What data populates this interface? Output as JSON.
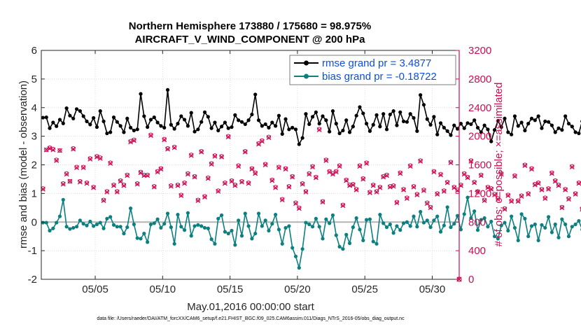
{
  "colors": {
    "rmse": "#000000",
    "bias": "#0c8080",
    "obs": "#cc0d53",
    "zero_line": "#b4b4b4",
    "legend_text": "#0d4fdb"
  },
  "chart_data": {
    "type": "line",
    "title_line1": "Northern Hemisphere 173880 / 175680 = 98.975%",
    "title_line2": "AIRCRAFT_V_WIND_COMPONENT @ 200 hPa",
    "xlabel": "May.01,2016 00:00:00 start",
    "ylabel": "rmse and bias (model - observation)",
    "ylabel_right": "# of obs: o=possible; ×=assimilated",
    "footnote": "data file: /Users/raeder/DAI/ATM_forcXX/CAM6_setup/f.e21.FHIST_BGC.f09_025.CAM6assim.011/Diags_NTrS_2016-05/obs_diag_output.nc",
    "x_unit": "day of May 2016",
    "xlim": [
      1,
      32
    ],
    "ylim": [
      -2,
      6
    ],
    "ylim_right": [
      0,
      3200
    ],
    "x_ticks": [
      {
        "day": 5,
        "label": "05/05"
      },
      {
        "day": 10,
        "label": "05/10"
      },
      {
        "day": 15,
        "label": "05/15"
      },
      {
        "day": 20,
        "label": "05/20"
      },
      {
        "day": 25,
        "label": "05/25"
      },
      {
        "day": 30,
        "label": "05/30"
      }
    ],
    "y_ticks": [
      "-2",
      "-1",
      "0",
      "1",
      "2",
      "3",
      "4",
      "5",
      "6"
    ],
    "y_ticks_right": [
      "0",
      "400",
      "800",
      "1200",
      "1600",
      "2000",
      "2400",
      "2800",
      "3200"
    ],
    "legend": [
      {
        "name": "rmse",
        "label": "rmse grand pr = 3.4877"
      },
      {
        "name": "bias",
        "label": "bias grand pr = -0.18722"
      }
    ],
    "samples_per_day": 4,
    "series": [
      {
        "name": "rmse",
        "values": [
          3.65,
          3.66,
          3.28,
          3.48,
          3.35,
          3.58,
          3.45,
          3.98,
          3.72,
          3.62,
          3.95,
          3.88,
          3.7,
          3.52,
          3.41,
          3.64,
          3.32,
          3.88,
          3.52,
          3.1,
          3.14,
          3.66,
          3.5,
          3.36,
          3.14,
          3.62,
          3.3,
          3.2,
          3.24,
          4.48,
          3.7,
          3.32,
          3.58,
          3.66,
          3.48,
          3.36,
          3.3,
          4.62,
          3.4,
          3.26,
          3.44,
          3.7,
          3.58,
          3.36,
          3.82,
          3.16,
          3.24,
          3.5,
          3.84,
          3.68,
          3.28,
          3.48,
          3.2,
          3.34,
          3.48,
          3.28,
          3.32,
          3.74,
          3.56,
          3.5,
          3.42,
          3.56,
          3.76,
          4.46,
          3.56,
          3.36,
          3.42,
          3.3,
          3.48,
          3.36,
          3.72,
          3.08,
          3.6,
          3.24,
          3.3,
          3.24,
          2.72,
          2.94,
          3.78,
          3.42,
          3.68,
          3.84,
          3.44,
          3.7,
          3.56,
          3.16,
          3.88,
          3.44,
          3.1,
          3.2,
          3.56,
          3.14,
          3.34,
          3.72,
          4.02,
          3.8,
          3.44,
          3.18,
          3.4,
          3.74,
          3.34,
          3.78,
          3.24,
          3.76,
          3.88,
          3.38,
          3.84,
          3.52,
          3.5,
          3.78,
          3.64,
          3.18,
          4.44,
          4.1,
          3.6,
          3.4,
          3.68,
          3.06,
          3.46,
          3.3,
          3.18,
          3.04,
          3.38,
          3.26,
          3.44,
          3.28,
          3.46,
          3.42,
          3.56,
          3.3,
          3.14,
          3.38,
          3.24,
          2.82,
          3.22,
          3.54,
          3.32,
          3.62,
          3.14,
          3.06,
          3.7,
          3.36,
          3.48,
          3.2,
          3.44,
          3.62,
          3.56,
          3.7,
          3.28,
          3.52,
          3.5,
          3.38,
          3.14,
          3.28,
          3.22,
          3.7,
          3.44,
          3.34,
          3.14,
          3.1,
          3.52,
          4.02,
          3.82,
          3.12,
          3.42,
          3.44
        ]
      },
      {
        "name": "bias",
        "values": [
          -0.02,
          -0.02,
          -0.3,
          -0.22,
          -0.02,
          0.2,
          0.78,
          -0.16,
          -0.24,
          -0.2,
          -0.16,
          0.06,
          -0.06,
          -0.12,
          0.02,
          -0.14,
          -0.08,
          -0.02,
          -0.22,
          0.12,
          0.18,
          -0.1,
          -0.16,
          -0.16,
          -0.4,
          -0.18,
          0.48,
          -0.08,
          -0.56,
          -0.58,
          -0.4,
          -0.7,
          -0.08,
          -0.04,
          0.1,
          -0.2,
          -0.06,
          0.3,
          -0.18,
          -0.76,
          0.26,
          -0.16,
          -0.28,
          0.32,
          -0.48,
          -0.14,
          -0.1,
          -0.14,
          -0.2,
          -0.22,
          -0.6,
          -0.76,
          0.12,
          0.24,
          -0.34,
          -0.4,
          -0.3,
          -0.8,
          0.06,
          -0.48,
          0.3,
          -0.14,
          -0.58,
          -0.4,
          0.3,
          -0.14,
          0.06,
          -0.3,
          -0.06,
          0.26,
          -0.26,
          -0.76,
          -0.2,
          -0.14,
          -0.9,
          -1.2,
          -1.6,
          -0.94,
          -0.02,
          -0.08,
          -0.16,
          0.12,
          -0.16,
          -0.58,
          0.1,
          -0.04,
          0.24,
          -0.46,
          -0.86,
          -0.94,
          -0.44,
          -0.74,
          -0.18,
          0.14,
          -0.26,
          -0.64,
          0.08,
          0.1,
          -0.68,
          -0.76,
          0.26,
          -0.04,
          -0.18,
          -0.08,
          -0.38,
          -0.14,
          -0.28,
          -0.04,
          0.0,
          -0.14,
          0.2,
          -0.16,
          0.36,
          -0.02,
          0.06,
          -0.18,
          0.06,
          0.2,
          -0.34,
          -0.12,
          0.52,
          -0.18,
          -0.06,
          0.22,
          -0.26,
          0.28,
          0.86,
          0.14,
          0.38,
          -0.28,
          0.08,
          0.14,
          -0.16,
          0.02,
          -0.5,
          -0.58,
          -0.12,
          -0.02,
          -0.3,
          0.2,
          -0.2,
          -0.64,
          0.28,
          0.12,
          -0.5,
          -0.14,
          -0.08,
          -0.64,
          -0.1,
          -0.2,
          0.18,
          -0.36,
          -0.08,
          -0.54,
          0.1,
          -0.08,
          -0.5,
          -0.16,
          -0.08,
          0.04,
          -0.26,
          0.36,
          0.12,
          -0.08,
          0.32,
          -0.1
        ]
      },
      {
        "name": "obs_possible",
        "axis": "right",
        "values": [
          1270,
          1810,
          1840,
          1820,
          1670,
          1800,
          1340,
          1480,
          1370,
          1830,
          1570,
          1370,
          1570,
          1350,
          1690,
          1290,
          1720,
          1700,
          1110,
          1230,
          1630,
          1320,
          1230,
          1380,
          1320,
          1460,
          1930,
          1950,
          1340,
          1500,
          1460,
          1460,
          2020,
          1300,
          1510,
          1550,
          1960,
          1830,
          1310,
          1850,
          1320,
          1180,
          1350,
          1480,
          1740,
          1440,
          1110,
          1790,
          1160,
          1420,
          1620,
          1730,
          1240,
          1720,
          1350,
          2000,
          1380,
          1320,
          1590,
          1370,
          1790,
          1350,
          1550,
          1490,
          1900,
          1940,
          1610,
          1990,
          1390,
          1290,
          1570,
          1120,
          1550,
          1300,
          1440,
          1070,
          1000,
          1340,
          1230,
          1480,
          1580,
          1430,
          2100,
          1090,
          1670,
          1510,
          1480,
          1510,
          1590,
          1040,
          1390,
          1320,
          1330,
          1260,
          1590,
          1410,
          1630,
          1220,
          1320,
          1230,
          1290,
          1440,
          1460,
          1300,
          1310,
          1080,
          1490,
          1260,
          1140,
          1590,
          1300,
          1190,
          1660,
          1250,
          1070,
          1010,
          1510,
          1200,
          1470,
          1240,
          1360,
          1640,
          1290,
          1250,
          1320,
          1480,
          1430,
          1660,
          1360,
          1230,
          1460,
          1110,
          1290,
          1270,
          1190,
          1130,
          1480,
          990,
          1180,
          1100,
          1450,
          1100,
          1170,
          1600,
          1200,
          1550,
          1330,
          1350,
          1260,
          1140,
          1270,
          1490,
          1380,
          1320,
          1010,
          1260,
          1130,
          1580,
          1200,
          1350,
          990,
          1400,
          1430,
          1320,
          1010,
          1370
        ]
      },
      {
        "name": "obs_assimilated",
        "axis": "right",
        "values": [
          1260,
          1810,
          1830,
          1810,
          1660,
          1800,
          1330,
          1470,
          1370,
          1820,
          1560,
          1360,
          1560,
          1340,
          1680,
          1280,
          1710,
          1690,
          1100,
          1220,
          1620,
          1310,
          1220,
          1370,
          1310,
          1450,
          1920,
          1940,
          1330,
          1490,
          1450,
          1450,
          2010,
          1290,
          1500,
          1540,
          1950,
          1820,
          1300,
          1840,
          1310,
          1170,
          1340,
          1470,
          1730,
          1430,
          1100,
          1780,
          1150,
          1410,
          1610,
          1720,
          1230,
          1710,
          1340,
          1990,
          1370,
          1310,
          1580,
          1360,
          1780,
          1340,
          1540,
          1480,
          1890,
          1930,
          1600,
          1980,
          1380,
          1280,
          1560,
          1110,
          1540,
          1290,
          1430,
          1060,
          990,
          1330,
          1220,
          1470,
          1570,
          1420,
          2090,
          1080,
          1660,
          1500,
          1470,
          1500,
          1580,
          1030,
          1380,
          1310,
          1320,
          1250,
          1580,
          1400,
          1620,
          1210,
          1310,
          1220,
          1280,
          1430,
          1450,
          1290,
          1300,
          1070,
          1480,
          1250,
          1130,
          1580,
          1290,
          1180,
          1650,
          1240,
          1060,
          1000,
          1500,
          1190,
          1460,
          1230,
          1350,
          1630,
          1280,
          1240,
          1310,
          1470,
          1420,
          1650,
          1350,
          1220,
          1450,
          1100,
          1280,
          1260,
          1180,
          1120,
          1470,
          980,
          1170,
          1090,
          1440,
          1090,
          1160,
          1590,
          1190,
          1540,
          1320,
          1340,
          1250,
          1130,
          1260,
          1480,
          1370,
          1310,
          1000,
          1250,
          1120,
          1570,
          1190,
          1340,
          980,
          1390,
          1420,
          1310,
          1000,
          1360
        ]
      }
    ],
    "right_edge_point": {
      "day": 32,
      "value": 0
    }
  }
}
